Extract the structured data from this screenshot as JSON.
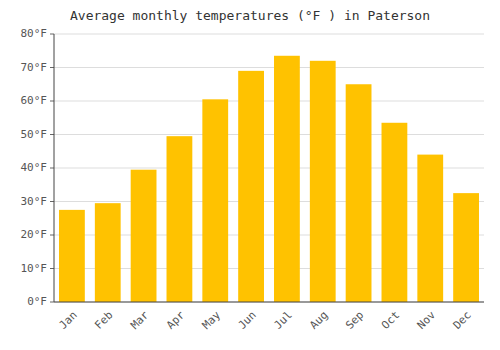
{
  "chart_data": {
    "type": "bar",
    "title": "Average monthly temperatures (°F ) in Paterson",
    "categories": [
      "Jan",
      "Feb",
      "Mar",
      "Apr",
      "May",
      "Jun",
      "Jul",
      "Aug",
      "Sep",
      "Oct",
      "Nov",
      "Dec"
    ],
    "values": [
      27.5,
      29.5,
      39.5,
      49.5,
      60.5,
      69.0,
      73.5,
      72.0,
      65.0,
      53.5,
      44.0,
      32.5
    ],
    "color": "#FFC200",
    "ylim": [
      0,
      80
    ],
    "yticks": [
      {
        "value": 0,
        "label": "0°F"
      },
      {
        "value": 10,
        "label": "10°F"
      },
      {
        "value": 20,
        "label": "20°F"
      },
      {
        "value": 30,
        "label": "30°F"
      },
      {
        "value": 40,
        "label": "40°F"
      },
      {
        "value": 50,
        "label": "50°F"
      },
      {
        "value": 60,
        "label": "60°F"
      },
      {
        "value": 70,
        "label": "70°F"
      },
      {
        "value": 80,
        "label": "80°F"
      }
    ],
    "grid": true
  }
}
